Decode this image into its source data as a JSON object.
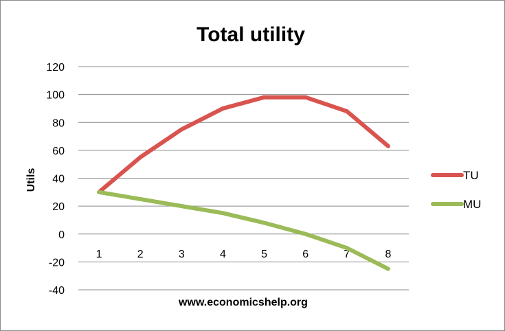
{
  "chart_data": {
    "type": "line",
    "title": "Total utility",
    "xlabel": "www.economicshelp.org",
    "ylabel": "Utils",
    "categories": [
      "1",
      "2",
      "3",
      "4",
      "5",
      "6",
      "7",
      "8"
    ],
    "yticks": [
      "120",
      "100",
      "80",
      "60",
      "40",
      "20",
      "0",
      "-20",
      "-40"
    ],
    "ylim": [
      -40,
      120
    ],
    "grid": true,
    "legend": "right",
    "series": [
      {
        "name": "TU",
        "color": "#d9534f",
        "values": [
          30,
          55,
          75,
          90,
          98,
          98,
          88,
          63
        ]
      },
      {
        "name": "MU",
        "color": "#9bbb59",
        "values": [
          30,
          25,
          20,
          15,
          8,
          0,
          -10,
          -25
        ]
      }
    ]
  }
}
